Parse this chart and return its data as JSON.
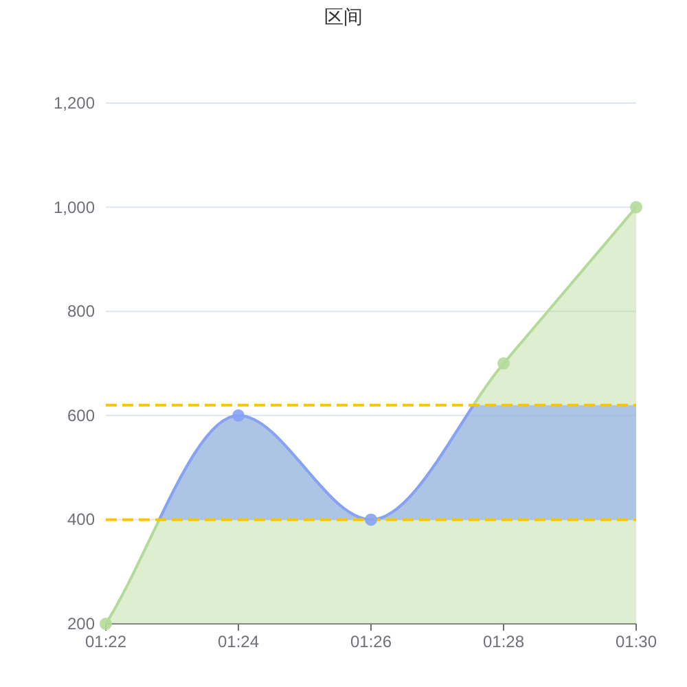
{
  "chart_data": {
    "type": "area",
    "title": "区间",
    "categories": [
      "01:22",
      "01:24",
      "01:26",
      "01:28",
      "01:30"
    ],
    "series": [
      {
        "color": "#b4da9a",
        "colors": [
          "#b4da9a",
          "#86a2f6",
          "#86a2f6",
          "#b4da9a",
          "#b4da9a"
        ],
        "values": [
          200,
          600,
          400,
          700,
          1000
        ]
      }
    ],
    "ylim": [
      200,
      1200
    ],
    "yticks": [
      200,
      400,
      600,
      800,
      {
        "value": 1000,
        "label": "1,000"
      },
      {
        "value": 1200,
        "label": "1,200"
      }
    ],
    "grid": "y",
    "marker": "circle",
    "ref_lines": [
      {
        "axis": "y",
        "value": 400,
        "color": "#f7c600",
        "line_style": "dashed"
      },
      {
        "axis": "y",
        "value": 620,
        "color": "#f7c600",
        "line_style": "dashed"
      }
    ]
  }
}
